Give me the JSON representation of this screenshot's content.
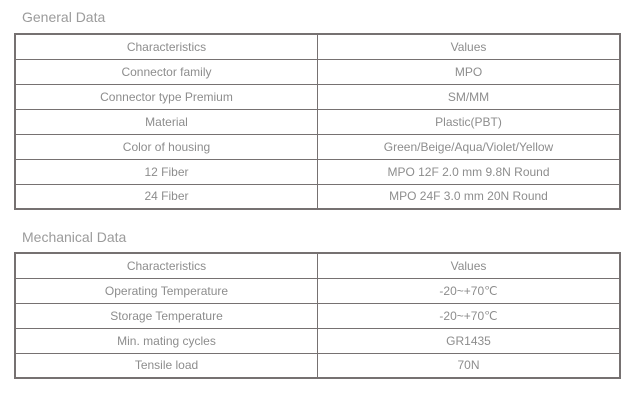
{
  "colors": {
    "background": "#ffffff",
    "table_border": "#767171",
    "cell_text": "#8d8d8d",
    "title_text": "#9b9b9b"
  },
  "sections": [
    {
      "title": "General Data",
      "table": {
        "headers": [
          "Characteristics",
          "Values"
        ],
        "rows": [
          [
            "Connector family",
            "MPO"
          ],
          [
            "Connector type Premium",
            "SM/MM"
          ],
          [
            "Material",
            "Plastic(PBT)"
          ],
          [
            "Color of housing",
            "Green/Beige/Aqua/Violet/Yellow"
          ],
          [
            "12 Fiber",
            "MPO 12F 2.0 mm 9.8N Round"
          ],
          [
            "24 Fiber",
            "MPO 24F 3.0 mm 20N Round"
          ]
        ]
      }
    },
    {
      "title": "Mechanical Data",
      "table": {
        "headers": [
          "Characteristics",
          "Values"
        ],
        "rows": [
          [
            "Operating Temperature",
            "-20~+70℃"
          ],
          [
            "Storage Temperature",
            "-20~+70℃"
          ],
          [
            "Min. mating cycles",
            "GR1435"
          ],
          [
            "Tensile load",
            "70N"
          ]
        ]
      }
    }
  ]
}
